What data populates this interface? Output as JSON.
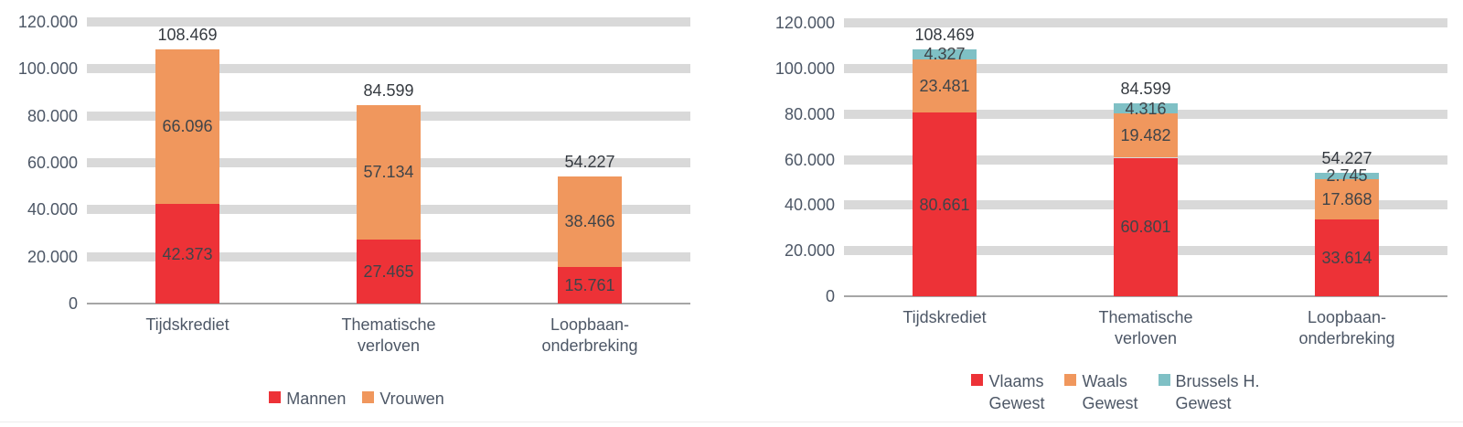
{
  "page": {
    "background": "#ffffff"
  },
  "colors": {
    "red": "#ed3237",
    "orange": "#f0975d",
    "teal": "#7fc0c5",
    "grid_band": "#d9d9d9",
    "axis_line": "#a6a6a6",
    "tick_text": "#4d5766",
    "data_label_text": "#3f4449"
  },
  "chart_data": [
    {
      "id": "left",
      "type": "bar",
      "stacked": true,
      "title": "",
      "grid": true,
      "legend_position": "bottom",
      "categories": [
        "Tijdskrediet",
        "Thematische\nverloven",
        "Loopbaan-\nonderbreking"
      ],
      "series": [
        {
          "name": "Mannen",
          "color": "#ed3237",
          "values": [
            42373,
            27465,
            15761
          ],
          "value_labels": [
            "42.373",
            "27.465",
            "15.761"
          ]
        },
        {
          "name": "Vrouwen",
          "color": "#f0975d",
          "values": [
            66096,
            57134,
            38466
          ],
          "value_labels": [
            "66.096",
            "57.134",
            "38.466"
          ]
        }
      ],
      "totals": {
        "values": [
          108469,
          84599,
          54227
        ],
        "labels": [
          "108.469",
          "84.599",
          "54.227"
        ]
      },
      "y_axis": {
        "min": 0,
        "max": 120000,
        "tick_step": 20000,
        "ticks": [
          {
            "value": 0,
            "label": "0"
          },
          {
            "value": 20000,
            "label": "20.000"
          },
          {
            "value": 40000,
            "label": "40.000"
          },
          {
            "value": 60000,
            "label": "60.000"
          },
          {
            "value": 80000,
            "label": "80.000"
          },
          {
            "value": 100000,
            "label": "100.000"
          },
          {
            "value": 120000,
            "label": "120.000"
          }
        ]
      },
      "legend": [
        {
          "label": "Mannen",
          "color": "#ed3237"
        },
        {
          "label": "Vrouwen",
          "color": "#f0975d"
        }
      ]
    },
    {
      "id": "right",
      "type": "bar",
      "stacked": true,
      "title": "",
      "grid": true,
      "legend_position": "bottom",
      "categories": [
        "Tijdskrediet",
        "Thematische\nverloven",
        "Loopbaan-\nonderbreking"
      ],
      "series": [
        {
          "name": "Vlaams Gewest",
          "color": "#ed3237",
          "values": [
            80661,
            60801,
            33614
          ],
          "value_labels": [
            "80.661",
            "60.801",
            "33.614"
          ]
        },
        {
          "name": "Waals Gewest",
          "color": "#f0975d",
          "values": [
            23481,
            19482,
            17868
          ],
          "value_labels": [
            "23.481",
            "19.482",
            "17.868"
          ]
        },
        {
          "name": "Brussels H. Gewest",
          "color": "#7fc0c5",
          "values": [
            4327,
            4316,
            2745
          ],
          "value_labels": [
            "4.327",
            "4.316",
            "2.745"
          ]
        }
      ],
      "totals": {
        "values": [
          108469,
          84599,
          54227
        ],
        "labels": [
          "108.469",
          "84.599",
          "54.227"
        ]
      },
      "y_axis": {
        "min": 0,
        "max": 120000,
        "tick_step": 20000,
        "ticks": [
          {
            "value": 0,
            "label": "0"
          },
          {
            "value": 20000,
            "label": "20.000"
          },
          {
            "value": 40000,
            "label": "40.000"
          },
          {
            "value": 60000,
            "label": "60.000"
          },
          {
            "value": 80000,
            "label": "80.000"
          },
          {
            "value": 100000,
            "label": "100.000"
          },
          {
            "value": 120000,
            "label": "120.000"
          }
        ]
      },
      "legend": [
        {
          "label": "Vlaams\nGewest",
          "color": "#ed3237"
        },
        {
          "label": "Waals\nGewest",
          "color": "#f0975d"
        },
        {
          "label": "Brussels H.\nGewest",
          "color": "#7fc0c5"
        }
      ]
    }
  ]
}
